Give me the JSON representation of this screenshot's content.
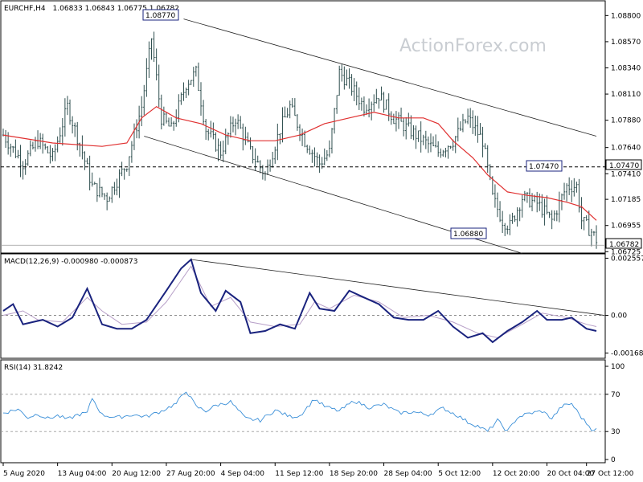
{
  "main": {
    "header": {
      "symbol": "EURCHF,H4",
      "ohlc": "1.06833 1.06843 1.06775 1.06782"
    },
    "watermark": "ActionForex.com",
    "y_ticks": [
      "1.08800",
      "1.08570",
      "1.08340",
      "1.08110",
      "1.07880",
      "1.07640",
      "1.07410",
      "1.07185",
      "1.06955",
      "1.06725"
    ],
    "price_labels": {
      "last": "1.06782",
      "resistance": "1.07470",
      "high": "1.08770",
      "low": "1.06880",
      "swing_high": "1.07470"
    }
  },
  "macd": {
    "label": "MACD(12,26,9) -0.000980 -0.000873",
    "y_ticks": [
      "0.002557",
      "0.00",
      "-0.001685"
    ],
    "zero_label": "0.00"
  },
  "rsi": {
    "label": "RSI(14) 31.8242",
    "y_ticks": [
      "100",
      "70",
      "30",
      "0"
    ]
  },
  "x_ticks": [
    "5 Aug 2020",
    "13 Aug 04:00",
    "20 Aug 12:00",
    "27 Aug 20:00",
    "4 Sep 04:00",
    "11 Sep 12:00",
    "18 Sep 20:00",
    "28 Sep 04:00",
    "5 Oct 12:00",
    "12 Oct 20:00",
    "20 Oct 04:00",
    "27 Oct 12:00"
  ],
  "colors": {
    "candles": "#2f4f4f",
    "moving_average": "#e03030",
    "macd_line": "#1a237e",
    "signal_line": "#b8a0c8",
    "rsi_line": "#3a8fd8",
    "trendlines": "#222222",
    "label_border": "#1a237e"
  },
  "chart_data": [
    {
      "type": "candlestick",
      "title": "EURCHF,H4",
      "ylim": [
        1.0672,
        1.0888
      ],
      "anchors": [
        [
          0,
          1.0775
        ],
        [
          8,
          1.075
        ],
        [
          14,
          1.077
        ],
        [
          20,
          1.0755
        ],
        [
          26,
          1.08
        ],
        [
          32,
          1.076
        ],
        [
          36,
          1.073
        ],
        [
          42,
          1.072
        ],
        [
          50,
          1.075
        ],
        [
          56,
          1.08
        ],
        [
          60,
          1.086
        ],
        [
          64,
          1.079
        ],
        [
          68,
          1.078
        ],
        [
          74,
          1.082
        ],
        [
          78,
          1.083
        ],
        [
          82,
          1.078
        ],
        [
          88,
          1.076
        ],
        [
          94,
          1.079
        ],
        [
          100,
          1.076
        ],
        [
          106,
          1.074
        ],
        [
          112,
          1.078
        ],
        [
          116,
          1.08
        ],
        [
          122,
          1.077
        ],
        [
          128,
          1.075
        ],
        [
          132,
          1.076
        ],
        [
          136,
          1.083
        ],
        [
          140,
          1.082
        ],
        [
          146,
          1.08
        ],
        [
          152,
          1.081
        ],
        [
          158,
          1.079
        ],
        [
          164,
          1.078
        ],
        [
          170,
          1.077
        ],
        [
          176,
          1.076
        ],
        [
          182,
          1.077
        ],
        [
          188,
          1.079
        ],
        [
          194,
          1.077
        ],
        [
          198,
          1.072
        ],
        [
          202,
          1.07
        ],
        [
          205,
          1.0695
        ],
        [
          210,
          1.072
        ],
        [
          216,
          1.0715
        ],
        [
          222,
          1.07
        ],
        [
          228,
          1.073
        ],
        [
          232,
          1.073
        ],
        [
          234,
          1.07
        ],
        [
          238,
          1.069
        ],
        [
          240,
          1.0683
        ]
      ],
      "moving_average": [
        [
          0,
          1.0775
        ],
        [
          20,
          1.0768
        ],
        [
          40,
          1.0765
        ],
        [
          50,
          1.0768
        ],
        [
          56,
          1.079
        ],
        [
          62,
          1.08
        ],
        [
          70,
          1.079
        ],
        [
          80,
          1.0785
        ],
        [
          90,
          1.0775
        ],
        [
          100,
          1.077
        ],
        [
          110,
          1.077
        ],
        [
          120,
          1.0775
        ],
        [
          130,
          1.0785
        ],
        [
          140,
          1.079
        ],
        [
          150,
          1.0795
        ],
        [
          160,
          1.079
        ],
        [
          170,
          1.079
        ],
        [
          176,
          1.0785
        ],
        [
          182,
          1.077
        ],
        [
          190,
          1.0755
        ],
        [
          196,
          1.074
        ],
        [
          204,
          1.0725
        ],
        [
          212,
          1.0722
        ],
        [
          220,
          1.072
        ],
        [
          228,
          1.0716
        ],
        [
          234,
          1.0712
        ],
        [
          240,
          1.07
        ]
      ],
      "levels": {
        "horizontal_dashed": 1.0747,
        "last_price": 1.06782,
        "labeled_high": 1.0877,
        "labeled_low": 1.0688,
        "labeled_swing_high": 1.0747
      },
      "channel": {
        "upper": [
          [
            73,
            1.0877
          ],
          [
            240,
            1.0774
          ]
        ],
        "lower": [
          [
            57,
            1.0774
          ],
          [
            210,
            1.0671
          ]
        ]
      }
    },
    {
      "type": "line",
      "title": "MACD(12,26,9) -0.000980 -0.000873",
      "ylim": [
        -0.00185,
        0.00268
      ],
      "series": [
        {
          "name": "MACD",
          "points": [
            [
              0,
              0.0002
            ],
            [
              4,
              0.0005
            ],
            [
              8,
              -0.0004
            ],
            [
              12,
              -0.0003
            ],
            [
              16,
              -0.0002
            ],
            [
              22,
              -0.0005
            ],
            [
              28,
              -0.0001
            ],
            [
              34,
              0.0012
            ],
            [
              40,
              -0.0004
            ],
            [
              46,
              -0.0006
            ],
            [
              52,
              -0.0006
            ],
            [
              58,
              -0.0002
            ],
            [
              66,
              0.0011
            ],
            [
              72,
              0.0021
            ],
            [
              76,
              0.0025
            ],
            [
              80,
              0.001
            ],
            [
              86,
              0.0002
            ],
            [
              90,
              0.0011
            ],
            [
              96,
              0.0006
            ],
            [
              100,
              -0.0008
            ],
            [
              106,
              -0.0007
            ],
            [
              112,
              -0.0004
            ],
            [
              118,
              -0.0006
            ],
            [
              124,
              0.001
            ],
            [
              128,
              0.0003
            ],
            [
              134,
              0.0002
            ],
            [
              140,
              0.0011
            ],
            [
              146,
              0.0008
            ],
            [
              152,
              0.0005
            ],
            [
              158,
              -0.0001
            ],
            [
              164,
              -0.0002
            ],
            [
              170,
              -0.0002
            ],
            [
              176,
              0.0002
            ],
            [
              182,
              -0.0005
            ],
            [
              188,
              -0.001
            ],
            [
              194,
              -0.0008
            ],
            [
              198,
              -0.0012
            ],
            [
              204,
              -0.0007
            ],
            [
              210,
              -0.0003
            ],
            [
              216,
              0.0002
            ],
            [
              220,
              -0.0002
            ],
            [
              226,
              -0.0002
            ],
            [
              230,
              -0.0001
            ],
            [
              236,
              -0.0006
            ],
            [
              240,
              -0.0007
            ]
          ]
        },
        {
          "name": "Signal",
          "points": [
            [
              0,
              0.0
            ],
            [
              8,
              0.0002
            ],
            [
              14,
              -0.0002
            ],
            [
              24,
              -0.0003
            ],
            [
              34,
              0.0008
            ],
            [
              40,
              0.0002
            ],
            [
              48,
              -0.0004
            ],
            [
              58,
              -0.0003
            ],
            [
              66,
              0.0006
            ],
            [
              76,
              0.0022
            ],
            [
              84,
              0.0004
            ],
            [
              92,
              0.0008
            ],
            [
              100,
              -0.0003
            ],
            [
              110,
              -0.0005
            ],
            [
              120,
              -0.0004
            ],
            [
              126,
              0.0006
            ],
            [
              132,
              0.0003
            ],
            [
              142,
              0.0009
            ],
            [
              152,
              0.0006
            ],
            [
              162,
              -0.0001
            ],
            [
              172,
              0.0
            ],
            [
              182,
              -0.0003
            ],
            [
              192,
              -0.0008
            ],
            [
              200,
              -0.001
            ],
            [
              210,
              -0.0004
            ],
            [
              218,
              0.0001
            ],
            [
              228,
              -0.0001
            ],
            [
              236,
              -0.0004
            ],
            [
              240,
              -0.0005
            ]
          ]
        }
      ],
      "trendline": [
        [
          76,
          0.0025
        ],
        [
          240,
          0.0
        ]
      ]
    },
    {
      "type": "line",
      "title": "RSI(14) 31.8242",
      "ylim": [
        0,
        100
      ],
      "reference_levels": [
        70,
        30
      ],
      "series": [
        {
          "name": "RSI(14)",
          "points": [
            [
              0,
              50
            ],
            [
              6,
              54
            ],
            [
              10,
              45
            ],
            [
              14,
              49
            ],
            [
              18,
              44
            ],
            [
              22,
              47
            ],
            [
              26,
              43
            ],
            [
              30,
              48
            ],
            [
              34,
              50
            ],
            [
              36,
              66
            ],
            [
              40,
              48
            ],
            [
              46,
              45
            ],
            [
              52,
              48
            ],
            [
              58,
              46
            ],
            [
              64,
              52
            ],
            [
              70,
              60
            ],
            [
              74,
              74
            ],
            [
              78,
              57
            ],
            [
              82,
              52
            ],
            [
              86,
              58
            ],
            [
              92,
              62
            ],
            [
              98,
              44
            ],
            [
              104,
              42
            ],
            [
              110,
              53
            ],
            [
              116,
              46
            ],
            [
              120,
              47
            ],
            [
              126,
              65
            ],
            [
              130,
              57
            ],
            [
              136,
              52
            ],
            [
              142,
              63
            ],
            [
              148,
              56
            ],
            [
              154,
              59
            ],
            [
              160,
              50
            ],
            [
              166,
              51
            ],
            [
              172,
              48
            ],
            [
              178,
              55
            ],
            [
              184,
              47
            ],
            [
              188,
              40
            ],
            [
              192,
              36
            ],
            [
              196,
              30
            ],
            [
              200,
              42
            ],
            [
              204,
              30
            ],
            [
              208,
              45
            ],
            [
              212,
              49
            ],
            [
              218,
              52
            ],
            [
              222,
              44
            ],
            [
              226,
              57
            ],
            [
              230,
              60
            ],
            [
              234,
              45
            ],
            [
              238,
              33
            ],
            [
              240,
              32
            ]
          ]
        }
      ]
    }
  ]
}
